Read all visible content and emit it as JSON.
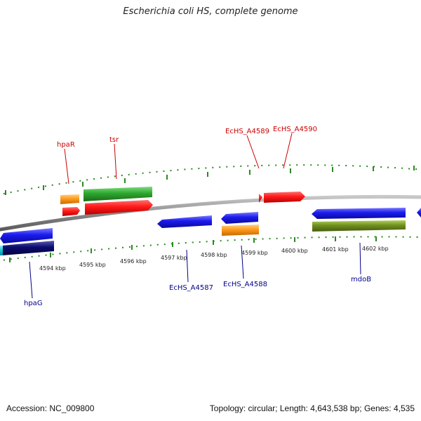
{
  "title": "Escherichia coli HS, complete genome",
  "footer": {
    "accession": "Accession: NC_009800",
    "topology": "Topology: circular; Length: 4,643,538 bp; Genes: 4,535"
  },
  "colors": {
    "backbone": "#8a8a8a",
    "tick": "#2a8a1f",
    "top_label": "#cc0000",
    "bottom_label": "#00008b",
    "red": "#ff1a1a",
    "green": "#2ea82e",
    "orange": "#ff9a1a",
    "blue": "#1a1aee",
    "navy": "#0a0a6e",
    "olive": "#6f8f1e",
    "cyan": "#18c8d8"
  },
  "scale_labels": [
    "4594 kbp",
    "4595 kbp",
    "4596 kbp",
    "4597 kbp",
    "4598 kbp",
    "4599 kbp",
    "4600 kbp",
    "4601 kbp",
    "4602 kbp"
  ],
  "gene_labels_top": [
    "hpaR",
    "tsr",
    "EcHS_A4589",
    "EcHS_A4590"
  ],
  "gene_labels_bottom": [
    "hpaG",
    "EcHS_A4587",
    "EcHS_A4588",
    "mdoB"
  ],
  "features": [
    {
      "name": "hpaR-top",
      "color": "orange"
    },
    {
      "name": "hpaR-bottom",
      "color": "red"
    },
    {
      "name": "tsr-top",
      "color": "green"
    },
    {
      "name": "tsr-bottom",
      "color": "red"
    },
    {
      "name": "echs-a4589-fragment",
      "color": "red"
    },
    {
      "name": "echs-a4590",
      "color": "red"
    },
    {
      "name": "hpag-top",
      "color": "blue"
    },
    {
      "name": "hpag-bottom",
      "color": "navy"
    },
    {
      "name": "hpag-edge",
      "color": "cyan"
    },
    {
      "name": "echs-a4587",
      "color": "blue"
    },
    {
      "name": "echs-a4588-top",
      "color": "blue"
    },
    {
      "name": "echs-a4588-bottom",
      "color": "orange"
    },
    {
      "name": "mdob-top",
      "color": "blue"
    },
    {
      "name": "mdob-bottom",
      "color": "olive"
    },
    {
      "name": "right-edge-gene",
      "color": "blue"
    }
  ]
}
